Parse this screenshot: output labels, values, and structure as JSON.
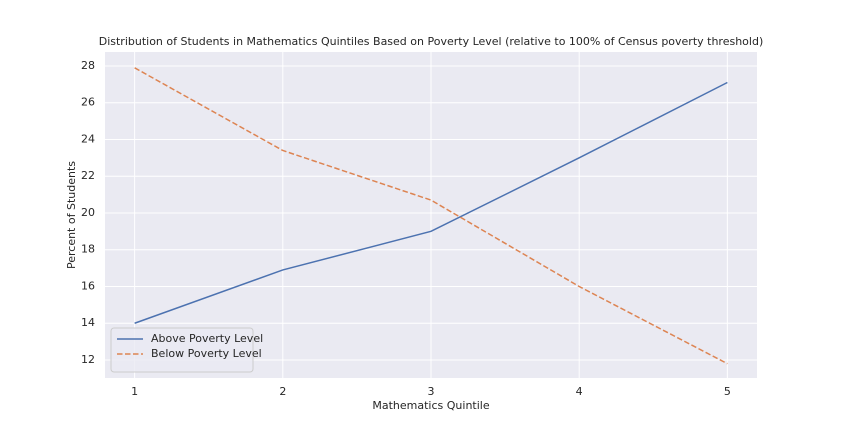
{
  "chart_data": {
    "type": "line",
    "title": "Distribution of Students in Mathematics Quintiles Based on Poverty Level (relative to 100% of Census poverty threshold)",
    "x_label": "Mathematics Quintile",
    "y_label": "Percent of Students",
    "x": [
      1,
      2,
      3,
      4,
      5
    ],
    "series": [
      {
        "name": "Above Poverty Level",
        "color": "#4c72b0",
        "linestyle": "solid",
        "values": [
          14.0,
          16.9,
          19.0,
          23.0,
          27.1
        ]
      },
      {
        "name": "Below Poverty Level",
        "color": "#dd8452",
        "linestyle": "dashed",
        "values": [
          27.9,
          23.4,
          20.7,
          16.0,
          11.8
        ]
      }
    ],
    "xlim": [
      0.8,
      5.2
    ],
    "xticks": [
      1,
      2,
      3,
      4,
      5
    ],
    "ylim": [
      11.02,
      28.76
    ],
    "yticks": [
      12,
      14,
      16,
      18,
      20,
      22,
      24,
      26,
      28
    ],
    "grid": true,
    "legend": "lower left"
  }
}
